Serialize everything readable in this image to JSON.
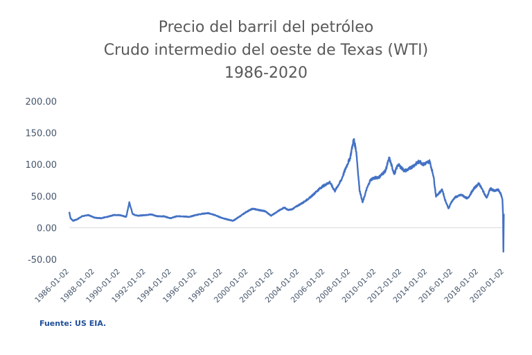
{
  "title_lines": [
    "Precio del barril del petróleo",
    "Crudo intermedio del oeste de Texas (WTI)",
    "1986-2020"
  ],
  "source": "Fuente: US EIA.",
  "colors": {
    "line": "#4472c4",
    "axis_text": "#44546a",
    "title": "#595959",
    "source": "#1f4e9a"
  },
  "chart_data": {
    "type": "line",
    "title": "Precio del barril del petróleo Crudo intermedio del oeste de Texas (WTI) 1986-2020",
    "xlabel": "",
    "ylabel": "",
    "ylim": [
      -50,
      200
    ],
    "yticks": [
      -50,
      0,
      50,
      100,
      150,
      200
    ],
    "ytick_labels": [
      "-50.00",
      "0.00",
      "50.00",
      "100.00",
      "150.00",
      "200.00"
    ],
    "xlim": [
      1986.0,
      2020.4
    ],
    "xtick_labels": [
      "1986-01-02",
      "1988-01-02",
      "1990-01-02",
      "1992-01-02",
      "1994-01-02",
      "1996-01-02",
      "1998-01-02",
      "2000-01-02",
      "2002-01-02",
      "2004-01-02",
      "2006-01-02",
      "2008-01-02",
      "2010-01-02",
      "2012-01-02",
      "2014-01-02",
      "2016-01-02",
      "2018-01-02",
      "2020-01-02"
    ],
    "grid": false,
    "legend": "none",
    "series": [
      {
        "x": [
          1986.0,
          1986.1,
          1986.3,
          1986.6,
          1987.0,
          1987.5,
          1988.0,
          1988.5,
          1989.0,
          1989.5,
          1990.0,
          1990.5,
          1990.75,
          1990.85,
          1991.0,
          1991.2,
          1991.5,
          1992.0,
          1992.5,
          1993.0,
          1993.5,
          1994.0,
          1994.5,
          1995.0,
          1995.5,
          1996.0,
          1996.5,
          1997.0,
          1997.5,
          1998.0,
          1998.5,
          1998.95,
          1999.5,
          2000.0,
          2000.5,
          2001.0,
          2001.5,
          2001.95,
          2002.5,
          2003.0,
          2003.3,
          2003.6,
          2004.0,
          2004.5,
          2005.0,
          2005.7,
          2006.0,
          2006.6,
          2007.0,
          2007.5,
          2007.9,
          2008.2,
          2008.5,
          2008.7,
          2008.95,
          2009.2,
          2009.5,
          2009.8,
          2010.0,
          2010.5,
          2011.0,
          2011.3,
          2011.7,
          2012.0,
          2012.5,
          2012.8,
          2013.0,
          2013.7,
          2014.0,
          2014.5,
          2014.8,
          2015.0,
          2015.5,
          2015.7,
          2016.0,
          2016.2,
          2016.5,
          2017.0,
          2017.5,
          2018.0,
          2018.4,
          2018.8,
          2019.0,
          2019.3,
          2019.6,
          2019.9,
          2020.0,
          2020.15,
          2020.25,
          2020.3,
          2020.33,
          2020.36
        ],
        "y": [
          25,
          15,
          11,
          13,
          18,
          20,
          16,
          15,
          17,
          20,
          20,
          17,
          40,
          33,
          22,
          20,
          19,
          20,
          21,
          18,
          18,
          15,
          18,
          18,
          17,
          20,
          22,
          23,
          20,
          16,
          13,
          11,
          18,
          25,
          30,
          28,
          26,
          19,
          26,
          32,
          28,
          29,
          34,
          40,
          47,
          60,
          65,
          72,
          58,
          75,
          96,
          110,
          140,
          120,
          60,
          40,
          60,
          75,
          78,
          80,
          90,
          110,
          85,
          100,
          90,
          92,
          95,
          105,
          100,
          105,
          82,
          50,
          60,
          45,
          30,
          40,
          48,
          52,
          46,
          62,
          70,
          55,
          47,
          62,
          58,
          60,
          58,
          52,
          45,
          20,
          -38,
          22
        ]
      }
    ]
  }
}
